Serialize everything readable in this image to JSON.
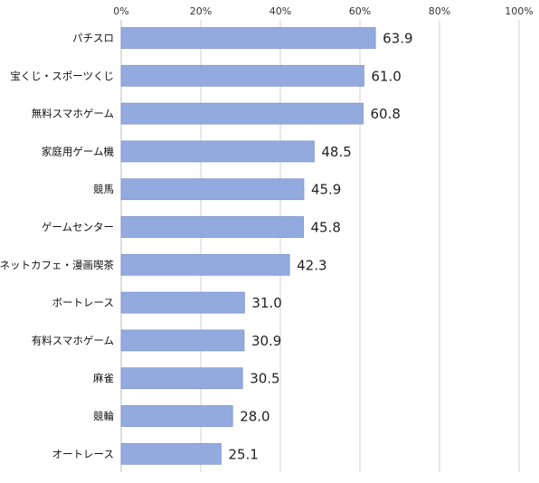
{
  "chart_data": {
    "type": "bar",
    "orientation": "horizontal",
    "categories": [
      "パチスロ",
      "宝くじ・スポーツくじ",
      "無料スマホゲーム",
      "家庭用ゲーム機",
      "競馬",
      "ゲームセンター",
      "ネットカフェ・漫画喫茶",
      "ボートレース",
      "有料スマホゲーム",
      "麻雀",
      "競輪",
      "オートレース"
    ],
    "values": [
      63.9,
      61.0,
      60.8,
      48.5,
      45.9,
      45.8,
      42.3,
      31.0,
      30.9,
      30.5,
      28.0,
      25.1
    ],
    "data_labels": [
      "63.9",
      "61.0",
      "60.8",
      "48.5",
      "45.9",
      "45.8",
      "42.3",
      "31.0",
      "30.9",
      "30.5",
      "28.0",
      "25.1"
    ],
    "x_ticks": [
      "0%",
      "20%",
      "40%",
      "60%",
      "80%",
      "100%"
    ],
    "xlim": [
      0,
      100
    ],
    "axis_position": "top",
    "grid": true,
    "bar_color": "#93aadf",
    "bar_edge_color": "#7f96cc",
    "grid_color": "#d0d0d0"
  }
}
